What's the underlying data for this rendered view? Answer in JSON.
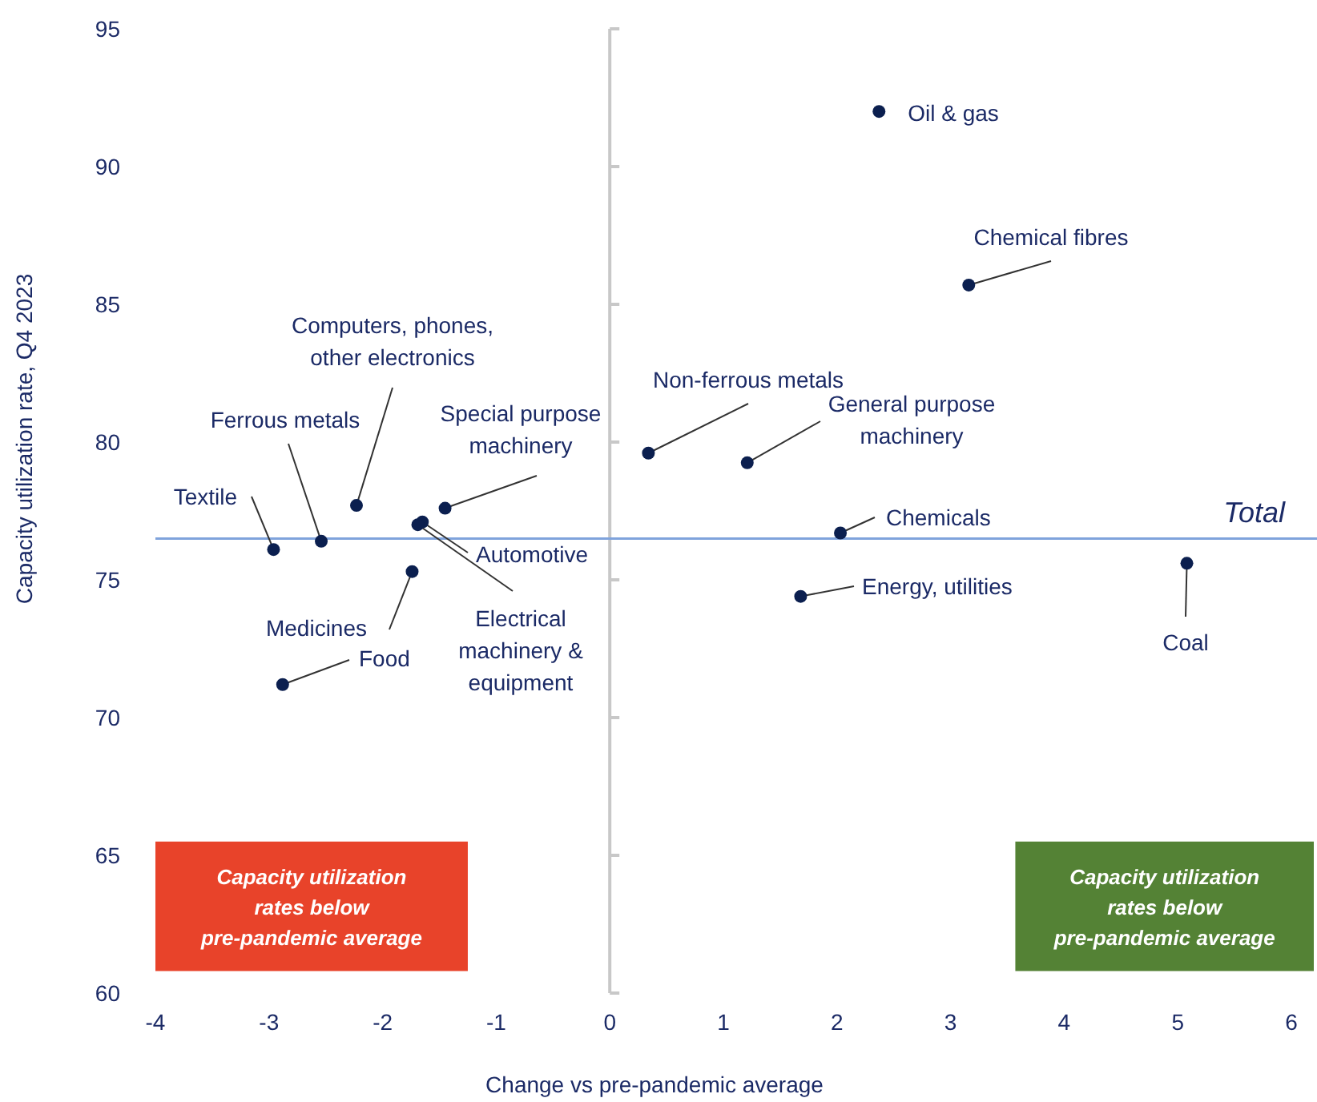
{
  "chart_data": {
    "type": "scatter",
    "xlabel": "Change vs pre-pandemic average",
    "ylabel": "Capacity utilization rate, Q4 2023",
    "x": [
      2.37,
      3.16,
      0.34,
      1.21,
      2.03,
      1.68,
      5.08,
      -2.96,
      -2.54,
      -2.23,
      -1.45,
      -1.65,
      -1.69,
      -1.74,
      -2.88
    ],
    "series": [
      {
        "color": "#0b1f4f",
        "values": [
          92.0,
          85.7,
          79.6,
          79.25,
          76.7,
          74.4,
          75.6,
          76.1,
          76.4,
          77.7,
          77.6,
          77.1,
          77.0,
          75.3,
          71.2
        ]
      }
    ],
    "annotations": [
      {
        "text": "Oil & gas",
        "x": 2.37,
        "y": 92.0
      },
      {
        "text": "Chemical fibres",
        "x": 3.16,
        "y": 85.7
      },
      {
        "text": "Non-ferrous metals",
        "x": 0.34,
        "y": 79.6
      },
      {
        "text": "General purpose machinery",
        "x": 1.21,
        "y": 79.25
      },
      {
        "text": "Chemicals",
        "x": 2.03,
        "y": 76.7
      },
      {
        "text": "Energy, utilities",
        "x": 1.68,
        "y": 74.4
      },
      {
        "text": "Coal",
        "x": 5.08,
        "y": 75.6
      },
      {
        "text": "Textile",
        "x": -2.96,
        "y": 76.1
      },
      {
        "text": "Ferrous metals",
        "x": -2.54,
        "y": 76.4
      },
      {
        "text": "Computers, phones, other electronics",
        "x": -2.23,
        "y": 77.7
      },
      {
        "text": "Special purpose machinery",
        "x": -1.45,
        "y": 77.6
      },
      {
        "text": "Automotive",
        "x": -1.65,
        "y": 77.1
      },
      {
        "text": "Electrical machinery & equipment",
        "x": -1.69,
        "y": 77.0
      },
      {
        "text": "Medicines",
        "x": -1.74,
        "y": 75.3
      },
      {
        "text": "Food",
        "x": -2.88,
        "y": 71.2
      },
      "Capacity utilization rates below pre-pandemic average",
      "Capacity utilization rates below pre-pandemic average"
    ],
    "ref_lines": [
      {
        "axis": "y",
        "value": 76.5,
        "label": "Total",
        "color": "#7fa3dc"
      }
    ],
    "xlim": [
      -4,
      6
    ],
    "xticks": [
      -4,
      -3,
      -2,
      -1,
      0,
      1,
      2,
      3,
      4,
      5,
      6
    ],
    "ylim": [
      60,
      95
    ],
    "yticks": [
      60,
      65,
      70,
      75,
      80,
      85,
      90,
      95
    ],
    "marker": "circle"
  }
}
